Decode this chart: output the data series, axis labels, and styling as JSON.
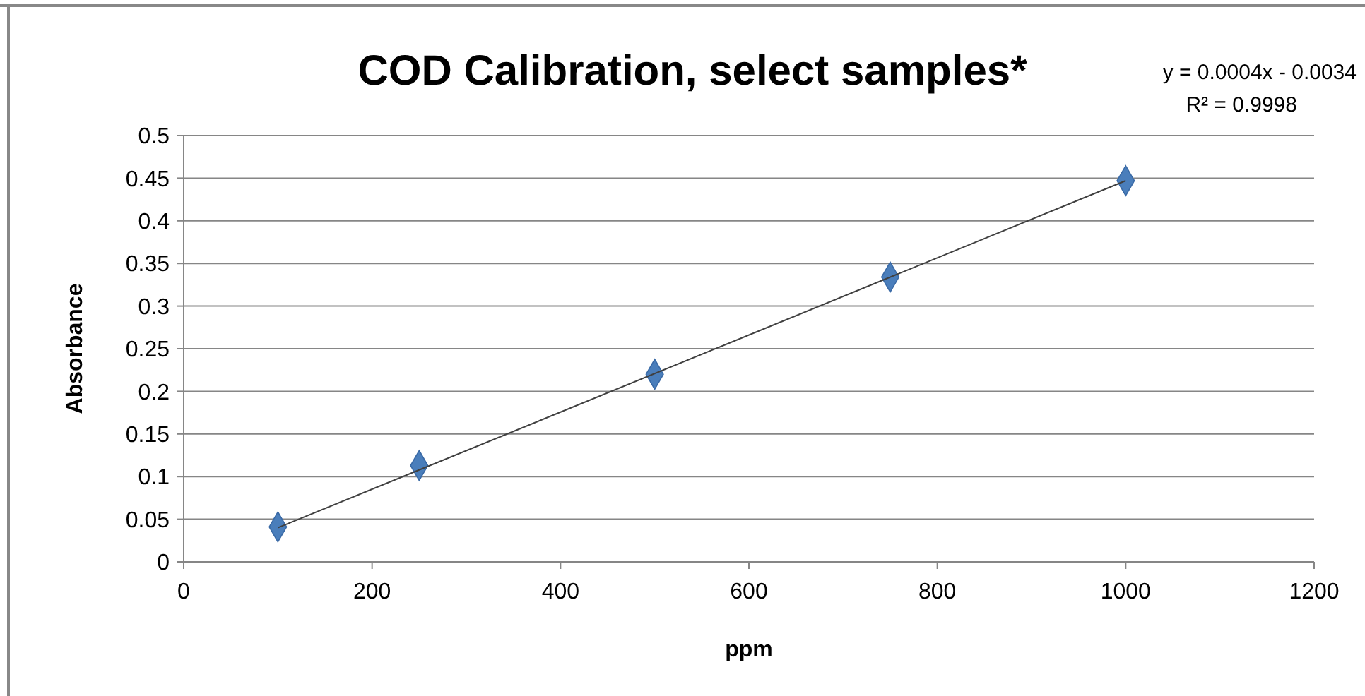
{
  "chart_data": {
    "type": "scatter",
    "title": "COD Calibration, select samples*",
    "xlabel": "ppm",
    "ylabel": "Absorbance",
    "annotations": [
      "y = 0.0004x - 0.0034",
      "R² = 0.9998"
    ],
    "series": [
      {
        "color": "#4a7ebb",
        "x": [
          100,
          250,
          500,
          750,
          1000
        ],
        "values": [
          0.041,
          0.113,
          0.22,
          0.334,
          0.447
        ],
        "marker": "diamond"
      },
      {
        "type": "line",
        "color": "#404040",
        "x": [
          100,
          1000
        ],
        "values": [
          0.04,
          0.447
        ],
        "marker": "none",
        "line_style": "solid"
      }
    ],
    "xlim": [
      0,
      1200
    ],
    "xticks": [
      0,
      200,
      400,
      600,
      800,
      1000,
      1200
    ],
    "ylim": [
      0,
      0.5
    ],
    "yticks": [
      0,
      0.05,
      0.1,
      0.15,
      0.2,
      0.25,
      0.3,
      0.35,
      0.4,
      0.45,
      0.5
    ],
    "grid": "y"
  }
}
